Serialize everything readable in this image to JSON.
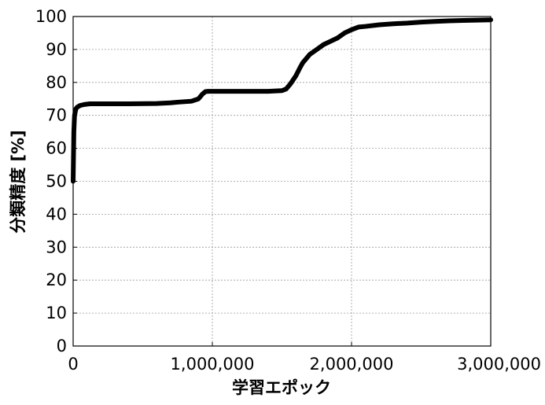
{
  "chart_data": {
    "type": "line",
    "title": "",
    "xlabel": "学習エポック",
    "ylabel": "分類精度 [%]",
    "xlim": [
      0,
      3000000
    ],
    "ylim": [
      0,
      100
    ],
    "grid": true,
    "x_ticks": [
      0,
      1000000,
      2000000,
      3000000
    ],
    "x_tick_labels": [
      "0",
      "1,000,000",
      "2,000,000",
      "3,000,000"
    ],
    "y_ticks": [
      0,
      10,
      20,
      30,
      40,
      50,
      60,
      70,
      80,
      90,
      100
    ],
    "y_tick_labels": [
      "0",
      "10",
      "20",
      "30",
      "40",
      "50",
      "60",
      "70",
      "80",
      "90",
      "100"
    ],
    "line_color": "#000000",
    "series": [
      {
        "x": [
          0,
          5000,
          10000,
          20000,
          30000,
          50000,
          80000,
          120000,
          200000,
          400000,
          600000,
          700000,
          750000,
          850000,
          900000,
          930000,
          950000,
          970000,
          1000000,
          1200000,
          1400000,
          1500000,
          1530000,
          1560000,
          1600000,
          1630000,
          1650000,
          1700000,
          1750000,
          1800000,
          1850000,
          1900000,
          1950000,
          2000000,
          2050000,
          2100000,
          2200000,
          2300000,
          2400000,
          2500000,
          2600000,
          2700000,
          2800000,
          2900000,
          3000000
        ],
        "y": [
          50,
          65,
          70,
          72,
          72.5,
          73,
          73.3,
          73.5,
          73.5,
          73.5,
          73.6,
          73.8,
          74,
          74.3,
          75,
          76.5,
          77.2,
          77.3,
          77.3,
          77.3,
          77.3,
          77.5,
          78,
          79.5,
          82,
          84.5,
          86,
          88.5,
          90,
          91.5,
          92.5,
          93.5,
          95,
          96,
          96.8,
          97,
          97.5,
          97.8,
          98,
          98.3,
          98.5,
          98.7,
          98.8,
          98.9,
          99
        ]
      }
    ]
  }
}
